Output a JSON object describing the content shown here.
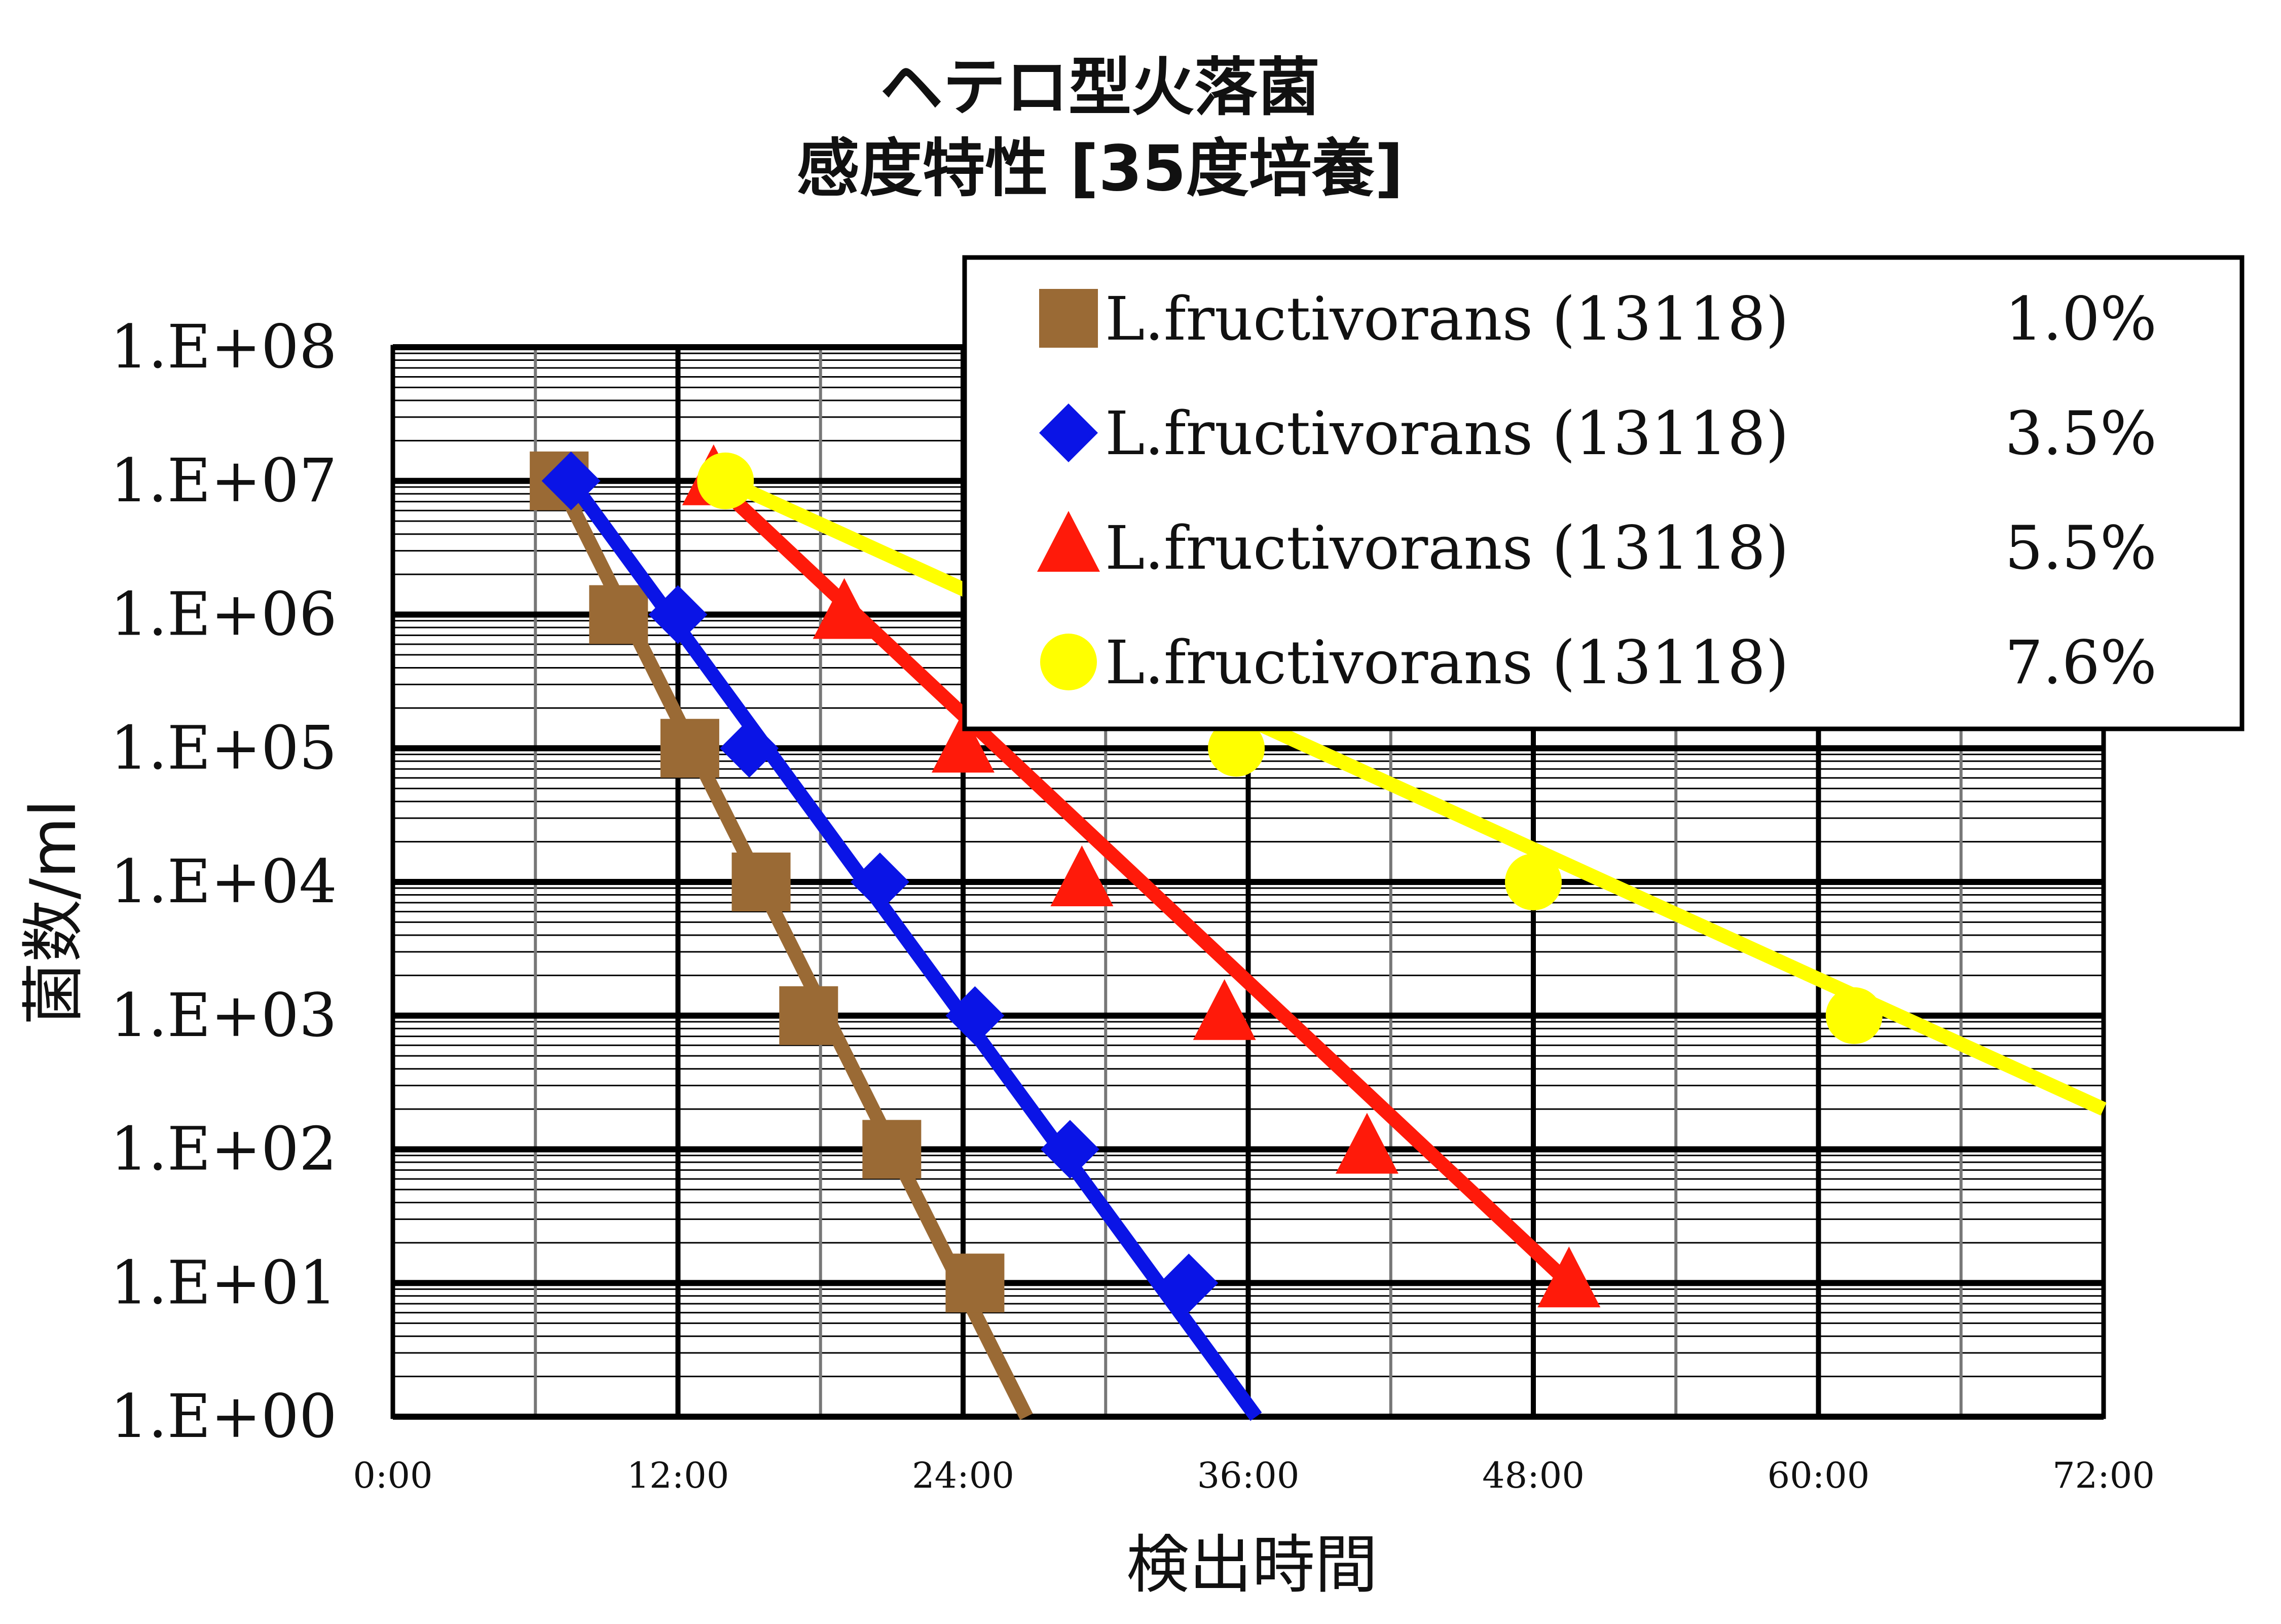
{
  "chart_data": {
    "type": "line",
    "title": "ヘテロ型火落菌",
    "subtitle": "感度特性 [35度培養]",
    "xlabel": "検出時間",
    "ylabel": "菌数/ml",
    "y_scale": "log",
    "xlim_hours": [
      0,
      72
    ],
    "ylim": [
      1,
      100000000
    ],
    "x_ticks": [
      "0:00",
      "12:00",
      "24:00",
      "36:00",
      "48:00",
      "60:00",
      "72:00"
    ],
    "y_ticks": [
      "1.E+00",
      "1.E+01",
      "1.E+02",
      "1.E+03",
      "1.E+04",
      "1.E+05",
      "1.E+06",
      "1.E+07",
      "1.E+08"
    ],
    "grid": true,
    "legend_position": "top-right",
    "series": [
      {
        "name": "L.fructivorans (13118)",
        "concentration": "1.0%",
        "color": "#9a6a35",
        "marker": "square",
        "points": [
          {
            "x": "7:00",
            "y": 10000000
          },
          {
            "x": "9:30",
            "y": 1000000
          },
          {
            "x": "12:30",
            "y": 100000
          },
          {
            "x": "15:30",
            "y": 10000
          },
          {
            "x": "17:30",
            "y": 1000
          },
          {
            "x": "21:00",
            "y": 100
          },
          {
            "x": "24:30",
            "y": 10
          }
        ],
        "trend": [
          {
            "x": "7:00",
            "y": 10000000
          },
          {
            "x": "26:40",
            "y": 1
          }
        ]
      },
      {
        "name": "L.fructivorans (13118)",
        "concentration": "3.5%",
        "color": "#0a14e6",
        "marker": "diamond",
        "points": [
          {
            "x": "7:30",
            "y": 10000000
          },
          {
            "x": "12:00",
            "y": 1000000
          },
          {
            "x": "15:00",
            "y": 100000
          },
          {
            "x": "20:30",
            "y": 10000
          },
          {
            "x": "24:30",
            "y": 1000
          },
          {
            "x": "28:30",
            "y": 100
          },
          {
            "x": "33:30",
            "y": 10
          }
        ],
        "trend": [
          {
            "x": "7:30",
            "y": 10000000
          },
          {
            "x": "36:20",
            "y": 1
          }
        ]
      },
      {
        "name": "L.fructivorans (13118)",
        "concentration": "5.5%",
        "color": "#ff1a0a",
        "marker": "triangle",
        "points": [
          {
            "x": "13:30",
            "y": 10000000
          },
          {
            "x": "19:00",
            "y": 1000000
          },
          {
            "x": "24:00",
            "y": 100000
          },
          {
            "x": "29:00",
            "y": 10000
          },
          {
            "x": "35:00",
            "y": 1000
          },
          {
            "x": "41:00",
            "y": 100
          },
          {
            "x": "49:30",
            "y": 10
          }
        ],
        "trend": [
          {
            "x": "13:30",
            "y": 10000000
          },
          {
            "x": "49:30",
            "y": 10
          }
        ]
      },
      {
        "name": "L.fructivorans (13118)",
        "concentration": "7.6%",
        "color": "#ffff00",
        "marker": "circle",
        "points": [
          {
            "x": "14:00",
            "y": 10000000
          },
          {
            "x": "35:30",
            "y": 100000
          },
          {
            "x": "48:00",
            "y": 10000
          },
          {
            "x": "61:30",
            "y": 1000
          }
        ],
        "trend": [
          {
            "x": "14:00",
            "y": 10000000
          },
          {
            "x": "72:00",
            "y": 200
          }
        ]
      }
    ]
  }
}
